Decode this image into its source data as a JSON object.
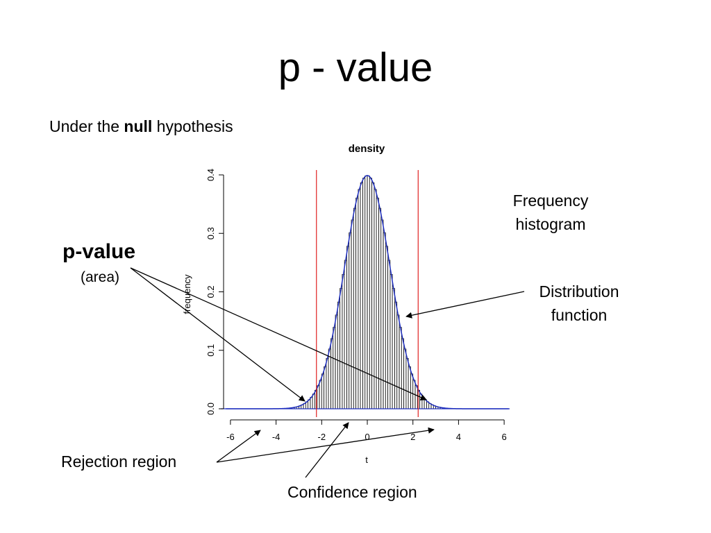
{
  "slide": {
    "title": "p - value",
    "subtitle_pre": "Under the ",
    "subtitle_bold": "null",
    "subtitle_post": " hypothesis"
  },
  "annotations": {
    "pvalue": "p-value",
    "area": "(area)",
    "frequency_histogram": "Frequency histogram",
    "distribution_function": "Distribution function",
    "rejection_region": "Rejection region",
    "confidence_region": "Confidence region"
  },
  "chart_data": {
    "type": "bar",
    "title": "density",
    "xlabel": "t",
    "ylabel": "frequency",
    "xlim": [
      -6,
      6
    ],
    "ylim": [
      0,
      0.4
    ],
    "xticks": [
      "-6",
      "-4",
      "-2",
      "0",
      "2",
      "4",
      "6"
    ],
    "yticks": [
      "0.0",
      "0.1",
      "0.2",
      "0.3",
      "0.4"
    ],
    "distribution": "approximately standard normal (density curve drawn over histogram bars)",
    "peak_density": 0.39,
    "critical_values": [
      -2.23,
      2.23
    ],
    "grid": false,
    "colors": {
      "bars": "#000000",
      "density_curve": "#1f2fbf",
      "critical_lines": "#e02020"
    }
  }
}
